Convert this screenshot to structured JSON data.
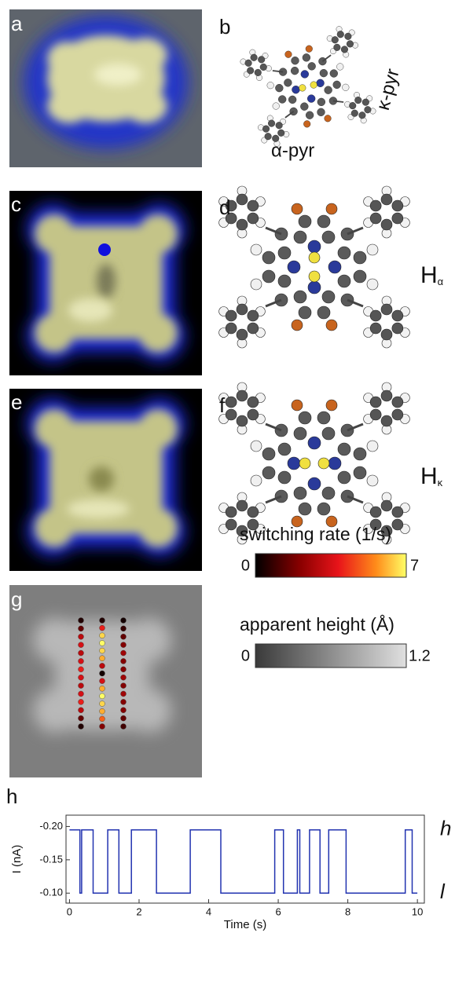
{
  "panels": {
    "a": {
      "label": "a"
    },
    "b": {
      "label": "b",
      "annotations": [
        "α-pyr",
        "κ-pyr"
      ]
    },
    "c": {
      "label": "c"
    },
    "d": {
      "label": "d",
      "state": "H",
      "state_subscript": "α"
    },
    "e": {
      "label": "e"
    },
    "f": {
      "label": "f",
      "state": "H",
      "state_subscript": "κ"
    },
    "g": {
      "label": "g",
      "colorbars": [
        {
          "title": "switching rate (1/s)",
          "lim": [
            0,
            7
          ],
          "ticks": [
            0,
            7
          ]
        },
        {
          "title": "apparent height (Å)",
          "lim": [
            0,
            1.2
          ],
          "ticks": [
            0,
            1.2
          ]
        }
      ],
      "switching_rates": [
        [
          0.5,
          1.5,
          3,
          3.5,
          3,
          3.5,
          4,
          3.5,
          3,
          3.5,
          4,
          3,
          1.5,
          0.5
        ],
        [
          0.5,
          4,
          6.5,
          7,
          6.5,
          6,
          3,
          0.3,
          3.5,
          6,
          7,
          6.5,
          6,
          5,
          2
        ],
        [
          0.3,
          0.8,
          1.5,
          2,
          2.5,
          2,
          2,
          2.5,
          2,
          2.5,
          2,
          2,
          1.5,
          1
        ]
      ]
    }
  },
  "chart_data": {
    "type": "line",
    "panel_label": "h",
    "xlabel": "Time (s)",
    "ylabel": "I (nA)",
    "level_labels": [
      "h",
      "l"
    ],
    "x": [
      0,
      0.3,
      0.3,
      0.35,
      0.35,
      0.68,
      0.68,
      1.1,
      1.1,
      1.42,
      1.42,
      1.78,
      1.78,
      2.5,
      2.5,
      3.47,
      3.47,
      4.35,
      4.35,
      5.9,
      5.9,
      6.15,
      6.15,
      6.55,
      6.55,
      6.62,
      6.62,
      6.9,
      6.9,
      7.2,
      7.2,
      7.45,
      7.45,
      7.95,
      7.95,
      9.65,
      9.65,
      9.85,
      9.85,
      10
    ],
    "values": [
      -0.195,
      -0.195,
      -0.1,
      -0.1,
      -0.195,
      -0.195,
      -0.1,
      -0.1,
      -0.195,
      -0.195,
      -0.1,
      -0.1,
      -0.195,
      -0.195,
      -0.1,
      -0.1,
      -0.195,
      -0.195,
      -0.1,
      -0.1,
      -0.195,
      -0.195,
      -0.1,
      -0.1,
      -0.195,
      -0.195,
      -0.1,
      -0.1,
      -0.195,
      -0.195,
      -0.1,
      -0.1,
      -0.195,
      -0.195,
      -0.1,
      -0.1,
      -0.195,
      -0.195,
      -0.1,
      -0.1
    ],
    "color": "#2233b0",
    "xlim": [
      -0.1,
      10.2
    ],
    "xticks": [
      0,
      2,
      4,
      6,
      8,
      10
    ],
    "ylim": [
      -0.085,
      -0.217
    ],
    "yticks": [
      {
        "value": -0.2,
        "label": "-0.20"
      },
      {
        "value": -0.15,
        "label": "-0.15"
      },
      {
        "value": -0.1,
        "label": "-0.10"
      }
    ]
  }
}
